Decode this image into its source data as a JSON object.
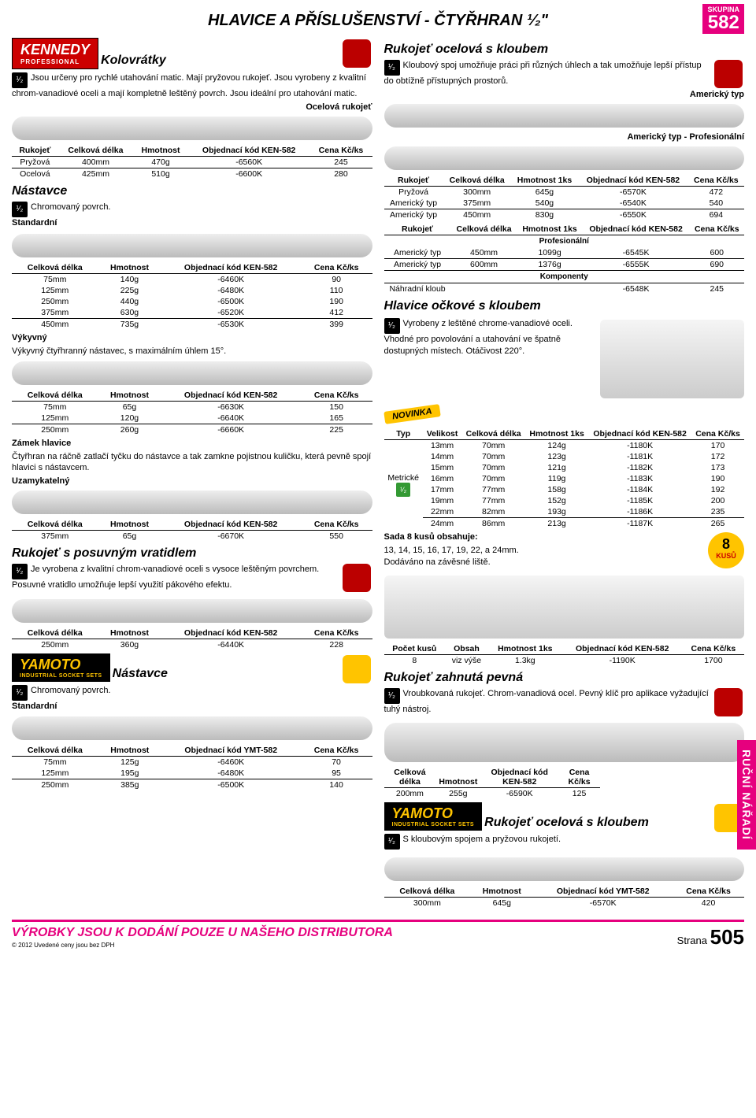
{
  "header": {
    "title": "HLAVICE A PŘÍSLUŠENSTVÍ - ČTYŘHRAN ¹⁄₂\"",
    "skupina_lbl": "SKUPINA",
    "skupina": "582"
  },
  "brands": {
    "kennedy": "KENNEDY",
    "kennedy_sub": "PROFESSIONAL",
    "yamoto": "YAMOTO",
    "yamoto_sub": "INDUSTRIAL SOCKET SETS"
  },
  "half": "¹⁄₂",
  "kolo": {
    "title": "Kolovrátky",
    "desc": "Jsou určeny pro rychlé utahování matic. Mají pryžovou rukojeť. Jsou vyrobeny z kvalitní chrom-vanadiové oceli a mají kompletně leštěný povrch. Jsou ideální pro utahování matic.",
    "ocel": "Ocelová rukojeť",
    "cols": [
      "Rukojeť",
      "Celková délka",
      "Hmotnost",
      "Objednací kód KEN-582",
      "Cena Kč/ks"
    ],
    "rows": [
      [
        "Pryžová",
        "400mm",
        "470g",
        "-6560K",
        "245"
      ],
      [
        "Ocelová",
        "425mm",
        "510g",
        "-6600K",
        "280"
      ]
    ]
  },
  "nast": {
    "title": "Nástavce",
    "desc": "Chromovaný povrch.",
    "sub": "Standardní",
    "cols": [
      "Celková délka",
      "Hmotnost",
      "Objednací kód KEN-582",
      "Cena Kč/ks"
    ],
    "rows": [
      [
        "75mm",
        "140g",
        "-6460K",
        "90"
      ],
      [
        "125mm",
        "225g",
        "-6480K",
        "110"
      ],
      [
        "250mm",
        "440g",
        "-6500K",
        "190"
      ],
      [
        "375mm",
        "630g",
        "-6520K",
        "412"
      ],
      [
        "450mm",
        "735g",
        "-6530K",
        "399"
      ]
    ]
  },
  "vyky": {
    "title": "Výkyvný",
    "desc": "Výkyvný čtyřhranný nástavec, s maximálním úhlem 15°.",
    "rows": [
      [
        "75mm",
        "65g",
        "-6630K",
        "150"
      ],
      [
        "125mm",
        "120g",
        "-6640K",
        "165"
      ],
      [
        "250mm",
        "260g",
        "-6660K",
        "225"
      ]
    ]
  },
  "zamek": {
    "title": "Zámek hlavice",
    "desc": "Čtyřhran na ráčně zatlačí tyčku do nástavce a tak zamkne pojistnou kuličku, která pevně spojí hlavici s nástavcem.",
    "sub": "Uzamykatelný",
    "rows": [
      [
        "375mm",
        "65g",
        "-6670K",
        "550"
      ]
    ]
  },
  "posuv": {
    "title": "Rukojeť s posuvným vratidlem",
    "desc": "Je vyrobena z kvalitní chrom-vanadiové oceli s vysoce leštěným povrchem. Posuvné vratidlo umožňuje lepší využití pákového efektu.",
    "rows": [
      [
        "250mm",
        "360g",
        "-6440K",
        "228"
      ]
    ]
  },
  "ynast": {
    "title": "Nástavce",
    "desc": "Chromovaný povrch.",
    "sub": "Standardní",
    "cols": [
      "Celková délka",
      "Hmotnost",
      "Objednací kód YMT-582",
      "Cena Kč/ks"
    ],
    "rows": [
      [
        "75mm",
        "125g",
        "-6460K",
        "70"
      ],
      [
        "125mm",
        "195g",
        "-6480K",
        "95"
      ],
      [
        "250mm",
        "385g",
        "-6500K",
        "140"
      ]
    ]
  },
  "ruko": {
    "title": "Rukojeť ocelová s kloubem",
    "desc": "Kloubový spoj umožňuje práci při různých úhlech a tak umožňuje lepší přístup do obtížně přístupných prostorů.",
    "am": "Americký typ",
    "amp": "Americký typ - Profesionální",
    "cols": [
      "Rukojeť",
      "Celková délka",
      "Hmotnost 1ks",
      "Objednací kód KEN-582",
      "Cena Kč/ks"
    ],
    "rows1": [
      [
        "Pryžová",
        "300mm",
        "645g",
        "-6570K",
        "472"
      ],
      [
        "Americký typ",
        "375mm",
        "540g",
        "-6540K",
        "540"
      ],
      [
        "Americký typ",
        "450mm",
        "830g",
        "-6550K",
        "694"
      ]
    ],
    "prof": "Profesionální",
    "rows2": [
      [
        "Americký typ",
        "450mm",
        "1099g",
        "-6545K",
        "600"
      ],
      [
        "Americký typ",
        "600mm",
        "1376g",
        "-6555K",
        "690"
      ]
    ],
    "komp": "Komponenty",
    "rows3": [
      [
        "Náhradní kloub",
        "",
        "",
        "-6548K",
        "245"
      ]
    ]
  },
  "ocko": {
    "title": "Hlavice očkové s kloubem",
    "desc": "Vyrobeny z leštěné chrome-vanadiové oceli. Vhodné pro povolování a utahování ve špatně dostupných místech. Otáčivost 220°.",
    "nov": "NOVINKA",
    "cols": [
      "Typ",
      "Velikost",
      "Celková délka",
      "Hmotnost 1ks",
      "Objednací kód KEN-582",
      "Cena Kč/ks"
    ],
    "typ": "Metrické",
    "rows": [
      [
        "13mm",
        "70mm",
        "124g",
        "-1180K",
        "170"
      ],
      [
        "14mm",
        "70mm",
        "123g",
        "-1181K",
        "172"
      ],
      [
        "15mm",
        "70mm",
        "121g",
        "-1182K",
        "173"
      ],
      [
        "16mm",
        "70mm",
        "119g",
        "-1183K",
        "190"
      ],
      [
        "17mm",
        "77mm",
        "158g",
        "-1184K",
        "192"
      ],
      [
        "19mm",
        "77mm",
        "152g",
        "-1185K",
        "200"
      ],
      [
        "22mm",
        "82mm",
        "193g",
        "-1186K",
        "235"
      ],
      [
        "24mm",
        "86mm",
        "213g",
        "-1187K",
        "265"
      ]
    ]
  },
  "sada": {
    "title": "Sada 8 kusů obsahuje:",
    "desc": "13, 14, 15, 16, 17, 19, 22, a 24mm.",
    "desc2": "Dodáváno na závěsné liště.",
    "badge_n": "8",
    "badge_k": "KUSŮ",
    "cols": [
      "Počet kusů",
      "Obsah",
      "Hmotnost 1ks",
      "Objednací kód KEN-582",
      "Cena Kč/ks"
    ],
    "rows": [
      [
        "8",
        "viz výše",
        "1.3kg",
        "-1190K",
        "1700"
      ]
    ]
  },
  "zahn": {
    "title": "Rukojeť zahnutá pevná",
    "desc": "Vroubkovaná rukojeť. Chrom-vanadiová ocel. Pevný klíč pro aplikace vyžadující tuhý nástroj.",
    "cols": [
      "Celková délka",
      "Hmotnost",
      "Objednací kód KEN-582",
      "Cena Kč/ks"
    ],
    "rows": [
      [
        "200mm",
        "255g",
        "-6590K",
        "125"
      ]
    ]
  },
  "yruko": {
    "title": "Rukojeť ocelová s kloubem",
    "desc": "S kloubovým spojem a pryžovou rukojetí.",
    "cols": [
      "Celková délka",
      "Hmotnost",
      "Objednací kód YMT-582",
      "Cena Kč/ks"
    ],
    "rows": [
      [
        "300mm",
        "645g",
        "-6570K",
        "420"
      ]
    ]
  },
  "footer": {
    "txt": "VÝROBKY JSOU K DODÁNÍ POUZE U NAŠEHO DISTRIBUTORA",
    "copy": "© 2012 Uvedené ceny jsou bez DPH",
    "strana": "Strana",
    "page": "505"
  },
  "side": "RUČNÍ NÁŘADÍ"
}
